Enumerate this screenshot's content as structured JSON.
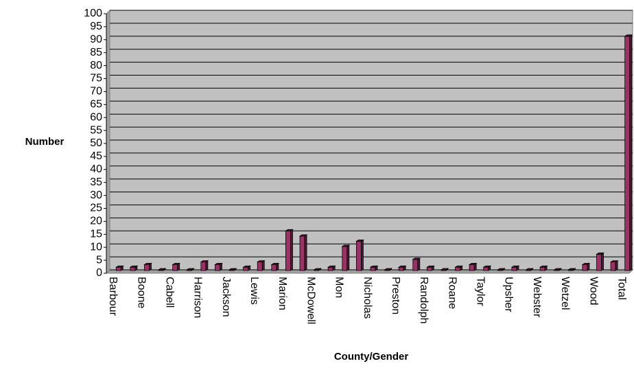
{
  "chart_data": {
    "type": "bar",
    "x_label": "County/Gender",
    "y_label": "Number",
    "categories": [
      "Barbour",
      null,
      "Boone",
      null,
      "Cabell",
      null,
      "Harrison",
      null,
      "Jackson",
      null,
      "Lewis",
      null,
      "Marion",
      null,
      "McDowell",
      null,
      "Mon",
      null,
      "Nicholas",
      null,
      "Preston",
      null,
      "Randolph",
      null,
      "Roane",
      null,
      "Taylor",
      null,
      "Upsher",
      null,
      "Webster",
      null,
      "Wetzel",
      null,
      "Wood",
      null,
      "Total"
    ],
    "values": [
      1,
      1,
      2,
      0,
      2,
      0,
      3,
      2,
      0,
      1,
      3,
      2,
      15,
      13,
      0,
      1,
      9,
      11,
      1,
      0,
      1,
      4,
      1,
      0,
      1,
      2,
      1,
      0,
      1,
      0,
      1,
      0,
      0,
      2,
      6,
      3,
      90
    ],
    "color": "#993366",
    "ylim": [
      0,
      100
    ],
    "yticks": [
      0,
      5,
      10,
      15,
      20,
      25,
      30,
      35,
      40,
      45,
      50,
      55,
      60,
      65,
      70,
      75,
      80,
      85,
      90,
      95,
      100
    ],
    "grid": true
  }
}
